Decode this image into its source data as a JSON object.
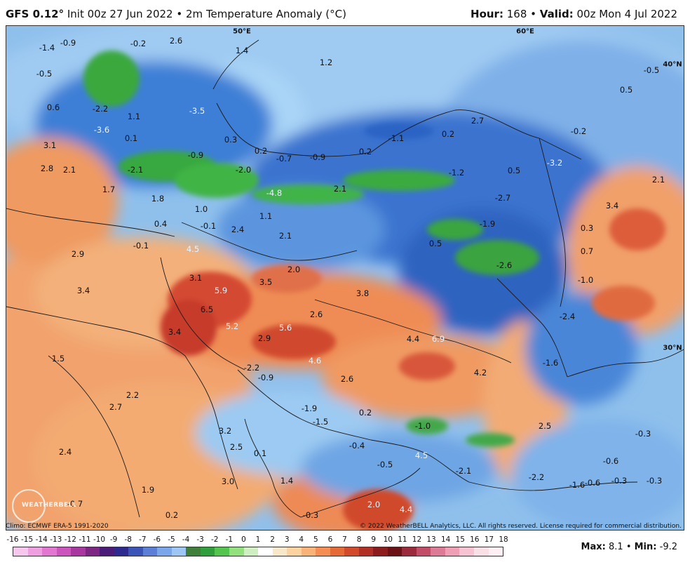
{
  "header": {
    "model": "GFS 0.12°",
    "init": "Init 00z 27 Jun 2022",
    "separator": "•",
    "product": "2m Temperature Anomaly (°C)",
    "hour_label": "Hour:",
    "hour": "168",
    "valid_label": "Valid:",
    "valid": "00z Mon 4 Jul 2022"
  },
  "coords": [
    {
      "text": "50°E"
    },
    {
      "text": "60°E"
    },
    {
      "text": "40°N"
    },
    {
      "text": "30°N"
    }
  ],
  "values": [
    "-1.4",
    "-0.9",
    "2.6",
    "-0.2",
    "1.4",
    "1.2",
    "-0.5",
    "0.6",
    "-2.2",
    "1.1",
    "-3.5",
    "-3.6",
    "0.1",
    "3.1",
    "2.8",
    "2.1",
    "-2.1",
    "-0.9",
    "0.3",
    "0.2",
    "-2.0",
    "-0.7",
    "-0.9",
    "0.2",
    "-1.1",
    "0.2",
    "2.7",
    "-0.2",
    "-0.5",
    "0.5",
    "-4.8",
    "2.1",
    "-1.2",
    "0.5",
    "-3.2",
    "2.1",
    "1.7",
    "1.8",
    "1.0",
    "0.4",
    "-0.1",
    "1.1",
    "2.4",
    "2.1",
    "-2.7",
    "-1.9",
    "3.4",
    "0.3",
    "-0.1",
    "4.5",
    "0.5",
    "0.7",
    "-2.6",
    "-1.0",
    "2.9",
    "3.1",
    "5.9",
    "3.5",
    "2.0",
    "3.8",
    "3.4",
    "6.5",
    "2.6",
    "-2.4",
    "3.4",
    "5.2",
    "5.6",
    "4.4",
    "6.9",
    "2.9",
    "1.5",
    "4.6",
    "-2.2",
    "-0.9",
    "4.2",
    "-1.6",
    "2.6",
    "2.2",
    "2.7",
    "-1.9",
    "0.2",
    "-1.5",
    "2.5",
    "3.2",
    "-1.0",
    "-0.3",
    "2.4",
    "2.5",
    "0.1",
    "-0.4",
    "-0.5",
    "-0.6",
    "1.4",
    "3.0",
    "-2.1",
    "-2.2",
    "-1.6",
    "-0.6",
    "-0.3",
    "-0.3",
    "1.9",
    "-0.7",
    "2.0",
    "0.2",
    "4.4",
    "-0.3",
    "4.5"
  ],
  "footer": {
    "climo": "Climo: ECMWF ERA-5 1991-2020",
    "copyright": "© 2022 WeatherBELL Analytics, LLC. All rights reserved. License required for commercial distribution.",
    "logo": "WEATHERBELL"
  },
  "legend": {
    "ticks": [
      "-16",
      "-15",
      "-14",
      "-13",
      "-12",
      "-11",
      "-10",
      "-9",
      "-8",
      "-7",
      "-6",
      "-5",
      "-4",
      "-3",
      "-2",
      "-1",
      "0",
      "1",
      "2",
      "3",
      "4",
      "5",
      "6",
      "7",
      "8",
      "9",
      "10",
      "11",
      "12",
      "13",
      "14",
      "15",
      "16",
      "17",
      "18"
    ],
    "colors": [
      "#f7c6ec",
      "#ee9fe0",
      "#e277d1",
      "#cc55bd",
      "#a8379f",
      "#7e2683",
      "#4a1b78",
      "#2c2a8f",
      "#3b54b8",
      "#5b7fd6",
      "#7ca6ea",
      "#9dc6f4",
      "#3f7f3a",
      "#2f9e3b",
      "#55c44f",
      "#93e07e",
      "#cfeec1",
      "#ffffff",
      "#f8e7c9",
      "#fbd2a0",
      "#f9b278",
      "#f48e55",
      "#e56a38",
      "#d04a2b",
      "#b22f25",
      "#8c1c1d",
      "#6b1216",
      "#9a2a3c",
      "#c24d68",
      "#dd7a95",
      "#ef9fb5",
      "#f7c3d2",
      "#fadfe7",
      "#fdeff3"
    ],
    "colors_note": "blue through red scale"
  },
  "summary": {
    "max_label": "Max:",
    "max": "8.1",
    "min_label": "Min:",
    "min": "-9.2"
  }
}
